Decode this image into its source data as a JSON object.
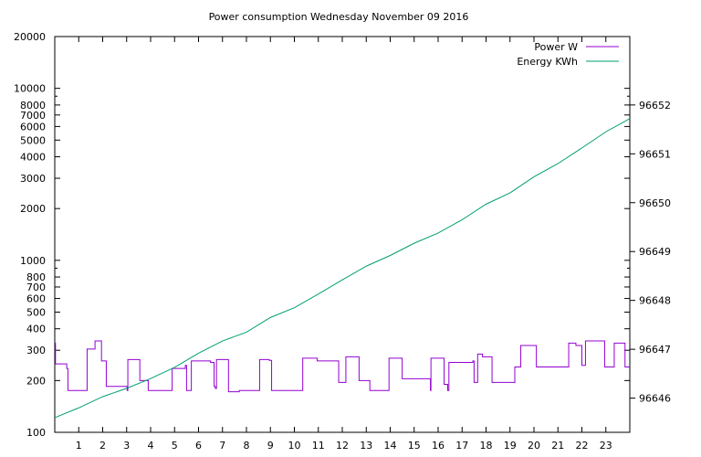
{
  "chart_data": {
    "type": "line",
    "title": "Power consumption Wednesday November 09 2016",
    "xlabel": "",
    "ylabel": "",
    "y2label": "",
    "x_range": [
      0,
      24
    ],
    "x_ticks": [
      "1",
      "2",
      "3",
      "4",
      "5",
      "6",
      "7",
      "8",
      "9",
      "10",
      "11",
      "12",
      "13",
      "14",
      "15",
      "16",
      "17",
      "18",
      "19",
      "20",
      "21",
      "22",
      "23"
    ],
    "y_scale": "log",
    "y_range": [
      100,
      20000
    ],
    "y_ticks": [
      {
        "v": 100,
        "label": "100"
      },
      {
        "v": 200,
        "label": "200"
      },
      {
        "v": 300,
        "label": "300"
      },
      {
        "v": 400,
        "label": "400"
      },
      {
        "v": 500,
        "label": "500"
      },
      {
        "v": 600,
        "label": "600"
      },
      {
        "v": 700,
        "label": "700"
      },
      {
        "v": 800,
        "label": "800"
      },
      {
        "v": 1000,
        "label": "1000"
      },
      {
        "v": 2000,
        "label": "2000"
      },
      {
        "v": 3000,
        "label": "3000"
      },
      {
        "v": 4000,
        "label": "4000"
      },
      {
        "v": 5000,
        "label": "5000"
      },
      {
        "v": 6000,
        "label": "6000"
      },
      {
        "v": 7000,
        "label": "7000"
      },
      {
        "v": 8000,
        "label": "8000"
      },
      {
        "v": 10000,
        "label": "10000"
      },
      {
        "v": 20000,
        "label": "20000"
      }
    ],
    "y2_scale": "linear",
    "y2_range": [
      96645.3,
      96653.4
    ],
    "y2_ticks": [
      "96646",
      "96647",
      "96648",
      "96649",
      "96650",
      "96651",
      "96652"
    ],
    "grid": false,
    "legend_position": "top-right",
    "colors": {
      "power": "#9400d3",
      "energy": "#009e73",
      "axis": "#000000"
    },
    "series": [
      {
        "name": "Power W",
        "axis": "y",
        "step": true,
        "points": [
          [
            0,
            330
          ],
          [
            0.03,
            250
          ],
          [
            0.45,
            250
          ],
          [
            0.5,
            235
          ],
          [
            0.55,
            175
          ],
          [
            1.0,
            175
          ],
          [
            1.3,
            175
          ],
          [
            1.35,
            305
          ],
          [
            1.65,
            305
          ],
          [
            1.68,
            340
          ],
          [
            1.9,
            340
          ],
          [
            1.95,
            260
          ],
          [
            2.05,
            260
          ],
          [
            2.15,
            185
          ],
          [
            3.0,
            185
          ],
          [
            3.02,
            175
          ],
          [
            3.05,
            265
          ],
          [
            3.5,
            265
          ],
          [
            3.55,
            200
          ],
          [
            3.85,
            200
          ],
          [
            3.9,
            175
          ],
          [
            4.85,
            175
          ],
          [
            4.9,
            235
          ],
          [
            5.4,
            235
          ],
          [
            5.45,
            245
          ],
          [
            5.5,
            175
          ],
          [
            5.65,
            175
          ],
          [
            5.7,
            260
          ],
          [
            6.45,
            260
          ],
          [
            6.5,
            255
          ],
          [
            6.6,
            255
          ],
          [
            6.65,
            185
          ],
          [
            6.7,
            180
          ],
          [
            6.75,
            265
          ],
          [
            7.2,
            265
          ],
          [
            7.25,
            172
          ],
          [
            7.65,
            172
          ],
          [
            7.7,
            175
          ],
          [
            8.5,
            175
          ],
          [
            8.55,
            265
          ],
          [
            8.95,
            262
          ],
          [
            9.05,
            175
          ],
          [
            10.3,
            175
          ],
          [
            10.35,
            270
          ],
          [
            10.9,
            270
          ],
          [
            10.95,
            260
          ],
          [
            11.8,
            260
          ],
          [
            11.85,
            195
          ],
          [
            12.1,
            195
          ],
          [
            12.15,
            275
          ],
          [
            12.65,
            275
          ],
          [
            12.7,
            200
          ],
          [
            13.1,
            200
          ],
          [
            13.15,
            175
          ],
          [
            13.9,
            175
          ],
          [
            13.95,
            270
          ],
          [
            14.45,
            270
          ],
          [
            14.5,
            205
          ],
          [
            15.65,
            205
          ],
          [
            15.68,
            175
          ],
          [
            15.7,
            270
          ],
          [
            16.2,
            270
          ],
          [
            16.25,
            190
          ],
          [
            16.35,
            190
          ],
          [
            16.4,
            175
          ],
          [
            16.45,
            255
          ],
          [
            17.4,
            255
          ],
          [
            17.45,
            260
          ],
          [
            17.5,
            195
          ],
          [
            17.6,
            195
          ],
          [
            17.65,
            285
          ],
          [
            17.8,
            285
          ],
          [
            17.85,
            275
          ],
          [
            18.2,
            275
          ],
          [
            18.25,
            195
          ],
          [
            19.15,
            195
          ],
          [
            19.2,
            240
          ],
          [
            19.4,
            240
          ],
          [
            19.45,
            320
          ],
          [
            20.0,
            320
          ],
          [
            20.1,
            240
          ],
          [
            21.4,
            240
          ],
          [
            21.45,
            330
          ],
          [
            21.7,
            330
          ],
          [
            21.75,
            320
          ],
          [
            21.95,
            320
          ],
          [
            22.0,
            245
          ],
          [
            22.1,
            245
          ],
          [
            22.15,
            340
          ],
          [
            22.9,
            340
          ],
          [
            22.95,
            240
          ],
          [
            23.3,
            240
          ],
          [
            23.35,
            330
          ],
          [
            23.75,
            330
          ],
          [
            23.8,
            240
          ],
          [
            24.0,
            240
          ]
        ]
      },
      {
        "name": "Energy KWh",
        "axis": "y2",
        "step": false,
        "points": [
          [
            0,
            96645.6
          ],
          [
            1,
            96645.8
          ],
          [
            2,
            96646.03
          ],
          [
            3,
            96646.2
          ],
          [
            4,
            96646.4
          ],
          [
            5,
            96646.63
          ],
          [
            6,
            96646.92
          ],
          [
            7,
            96647.17
          ],
          [
            8,
            96647.35
          ],
          [
            9,
            96647.65
          ],
          [
            10,
            96647.85
          ],
          [
            11,
            96648.13
          ],
          [
            12,
            96648.42
          ],
          [
            13,
            96648.7
          ],
          [
            14,
            96648.92
          ],
          [
            15,
            96649.17
          ],
          [
            16,
            96649.38
          ],
          [
            17,
            96649.65
          ],
          [
            18,
            96649.97
          ],
          [
            19,
            96650.2
          ],
          [
            20,
            96650.53
          ],
          [
            21,
            96650.8
          ],
          [
            22,
            96651.12
          ],
          [
            23,
            96651.45
          ],
          [
            24,
            96651.72
          ]
        ]
      }
    ]
  }
}
